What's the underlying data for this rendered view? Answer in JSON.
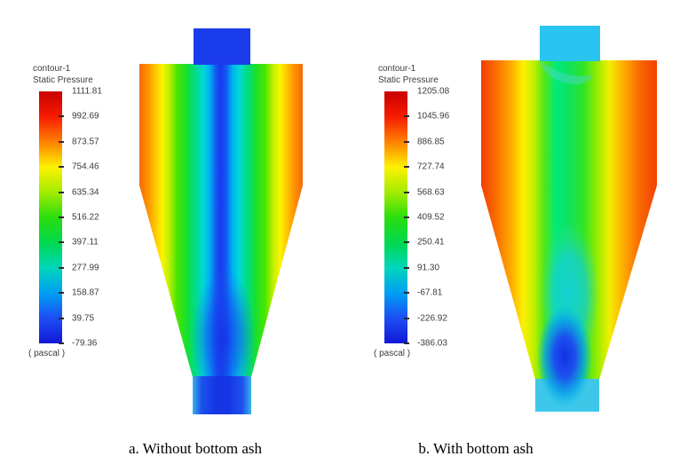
{
  "figure": {
    "panels": [
      {
        "caption": "a. Without bottom ash",
        "legend": {
          "title1": "contour-1",
          "title2": "Static Pressure",
          "unit": "( pascal )",
          "values": [
            "1111.81",
            "992.69",
            "873.57",
            "754.46",
            "635.34",
            "516.22",
            "397.11",
            "277.99",
            "158.87",
            "39.75",
            "-79.36"
          ]
        }
      },
      {
        "caption": "b. With bottom ash",
        "legend": {
          "title1": "contour-1",
          "title2": "Static Pressure",
          "unit": "( pascal )",
          "values": [
            "1205.08",
            "1045.96",
            "886.85",
            "727.74",
            "568.63",
            "409.52",
            "250.41",
            "91.30",
            "-67.81",
            "-226.92",
            "-386.03"
          ]
        }
      }
    ]
  },
  "colors": {
    "colormap": [
      "#c80000",
      "#f71b00",
      "#ff8000",
      "#fdf100",
      "#a4ec00",
      "#2ade0e",
      "#00d94e",
      "#00d6bb",
      "#009ff2",
      "#1c4ef3",
      "#1119d6"
    ],
    "bodyA": [
      [
        0,
        "#f56a02"
      ],
      [
        0.05,
        "#fd9000"
      ],
      [
        0.1,
        "#ffc900"
      ],
      [
        0.14,
        "#f9f500"
      ],
      [
        0.18,
        "#c3f000"
      ],
      [
        0.23,
        "#4be600"
      ],
      [
        0.29,
        "#17df2f"
      ],
      [
        0.34,
        "#00dc86"
      ],
      [
        0.39,
        "#00d9d3"
      ],
      [
        0.43,
        "#00b1f3"
      ],
      [
        0.47,
        "#1157f0"
      ],
      [
        0.5,
        "#1b38ef"
      ],
      [
        0.53,
        "#1157f0"
      ],
      [
        0.57,
        "#00b1f3"
      ],
      [
        0.61,
        "#00d9d3"
      ],
      [
        0.66,
        "#00dc86"
      ],
      [
        0.71,
        "#17df2f"
      ],
      [
        0.77,
        "#4be600"
      ],
      [
        0.82,
        "#c3f000"
      ],
      [
        0.86,
        "#f9f500"
      ],
      [
        0.9,
        "#ffc900"
      ],
      [
        0.95,
        "#fd9000"
      ],
      [
        1,
        "#f56a02"
      ]
    ],
    "bodyB": [
      [
        0,
        "#f23e04"
      ],
      [
        0.08,
        "#fa6a00"
      ],
      [
        0.17,
        "#ffab00"
      ],
      [
        0.24,
        "#fdf000"
      ],
      [
        0.3,
        "#c0ef00"
      ],
      [
        0.36,
        "#4fe717"
      ],
      [
        0.43,
        "#00e87c"
      ],
      [
        0.5,
        "#0ee25e"
      ],
      [
        0.58,
        "#2ee426"
      ],
      [
        0.66,
        "#96ec00"
      ],
      [
        0.73,
        "#f2ef00"
      ],
      [
        0.8,
        "#ffb300"
      ],
      [
        0.9,
        "#f96a00"
      ],
      [
        1,
        "#f24004"
      ]
    ],
    "pipeTopA": "#1b3ceb",
    "pipeTopB": "#29c4ef",
    "pipeBottomA": [
      [
        0,
        "#38b2e9"
      ],
      [
        0.15,
        "#1c52ee"
      ],
      [
        0.4,
        "#1635e5"
      ],
      [
        0.6,
        "#1635e5"
      ],
      [
        0.85,
        "#1c52ee"
      ],
      [
        1,
        "#38b2e9"
      ]
    ],
    "pipeBottomB": "#3dc8e9",
    "blobBlueA": [
      [
        0,
        "#1632e8",
        0.85
      ],
      [
        0.55,
        "#1745ee",
        0.5
      ],
      [
        1,
        "#1b6cf2",
        0
      ]
    ],
    "blobCyanB": [
      [
        0,
        "#16cfd6",
        0.95
      ],
      [
        0.55,
        "#18cfd8",
        0.7
      ],
      [
        1,
        "#45e08c",
        0
      ]
    ],
    "blobBlueB": [
      [
        0,
        "#1130e6",
        1
      ],
      [
        0.4,
        "#1c52ee",
        1
      ],
      [
        0.72,
        "#089fe8",
        0.8
      ],
      [
        1,
        "#0abce8",
        0
      ]
    ],
    "swirlCyan": "#49d8c8",
    "legend_text": "#3b3b3b",
    "caption_text": "#000000"
  },
  "chart_data": [
    {
      "type": "heatmap",
      "subtype": "cfd-contour",
      "title": "contour-1",
      "variable": "Static Pressure",
      "unit": "pascal",
      "caption": "a. Without bottom ash",
      "colorbar_ticks": [
        1111.81,
        992.69,
        873.57,
        754.46,
        635.34,
        516.22,
        397.11,
        277.99,
        158.87,
        39.75,
        -79.36
      ],
      "range": [
        -79.36,
        1111.81
      ],
      "legend_position": "left",
      "colormap": "rainbow (red = high, blue = low)",
      "description": "Cyclone separator axial cross-section. Pressure is highest (red/orange) at the outer walls, grading through yellow, green and cyan to a low-pressure blue core along the central axis; the vortex-finder outlet pipe at top and the dust outlet pipe at bottom are at minimum (blue) pressure."
    },
    {
      "type": "heatmap",
      "subtype": "cfd-contour",
      "title": "contour-1",
      "variable": "Static Pressure",
      "unit": "pascal",
      "caption": "b. With bottom ash",
      "colorbar_ticks": [
        1205.08,
        1045.96,
        886.85,
        727.74,
        568.63,
        409.52,
        250.41,
        91.3,
        -67.81,
        -226.92,
        -386.03
      ],
      "range": [
        -386.03,
        1205.08
      ],
      "legend_position": "left",
      "colormap": "rainbow (red = high, blue = low)",
      "description": "Cyclone separator axial cross-section with bottom ash. Walls red/orange, broad green/teal central column, cyan outlet pipe at top; a cyan-to-deep-blue low-pressure zone fills the lower cone and dust outlet pipe."
    }
  ]
}
